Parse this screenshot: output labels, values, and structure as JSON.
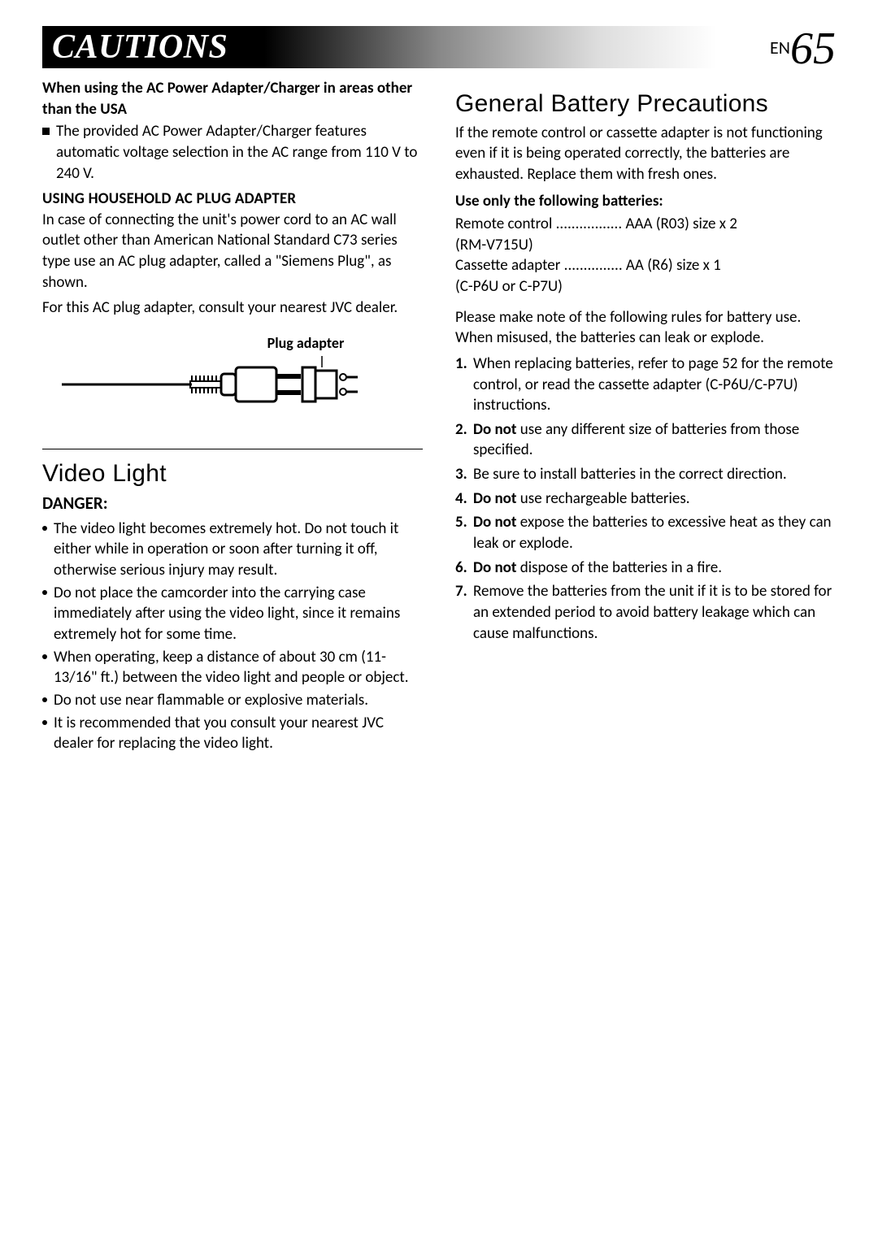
{
  "header": {
    "title": "CAUTIONS",
    "page_lang": "EN",
    "page_num": "65"
  },
  "left": {
    "ac_heading": "When using the AC Power Adapter/Charger in areas other than the USA",
    "ac_bullet": "The provided AC Power Adapter/Charger features automatic voltage selection in the AC range from 110 V to 240 V.",
    "plug_heading": "USING HOUSEHOLD AC PLUG ADAPTER",
    "plug_p1": "In case of connecting the unit's power cord to an AC wall outlet other than American National Standard C73 series type use an AC plug adapter, called a \"Siemens Plug\", as shown.",
    "plug_p2": "For this AC plug adapter, consult your nearest JVC dealer.",
    "plug_adapter_label": "Plug adapter",
    "video_title": "Video Light",
    "danger_label": "DANGER:",
    "danger_items": [
      "The video light becomes extremely hot. Do not touch it either while in operation or soon after turning it off, otherwise serious injury may result.",
      "Do not place the camcorder into the carrying case immediately after using the video light, since it remains extremely hot for some time.",
      "When operating, keep a distance of about 30 cm (11-13/16\" ft.) between the video light and people or object.",
      "Do not use near flammable or explosive materials.",
      "It is recommended that you consult your nearest JVC dealer for replacing the video light."
    ]
  },
  "right": {
    "batt_title": "General Battery Precautions",
    "batt_intro": "If the remote control or cassette adapter is not functioning even if it is being operated correctly, the batteries are exhausted. Replace them with fresh ones.",
    "use_only": "Use only the following batteries:",
    "spec1_label": "Remote control",
    "spec1_dots": " ................. ",
    "spec1_val": "AAA (R03) size x 2",
    "spec1_model": "(RM-V715U)",
    "spec2_label": "Cassette adapter",
    "spec2_dots": " ............... ",
    "spec2_val": "AA (R6) size x 1",
    "spec2_model": "(C-P6U or C-P7U)",
    "rules_intro": "Please make note of the following rules for battery use. When misused, the batteries can leak or explode.",
    "n1": "1.",
    "r1": "When replacing batteries, refer to page 52 for the remote control, or read the cassette adapter (C-P6U/C-P7U) instructions.",
    "n2": "2.",
    "r2a": "Do not",
    "r2b": " use any different size of batteries from those specified.",
    "n3": "3.",
    "r3": "Be sure to install batteries in the correct direction.",
    "n4": "4.",
    "r4a": "Do not",
    "r4b": " use rechargeable batteries.",
    "n5": "5.",
    "r5a": "Do not",
    "r5b": " expose the batteries to excessive heat as they can leak or explode.",
    "n6": "6.",
    "r6a": "Do not",
    "r6b": " dispose of the batteries in a fire.",
    "n7": "7.",
    "r7": "Remove the batteries from the unit if it is to be stored for an extended period to avoid battery leakage which can cause malfunctions."
  }
}
